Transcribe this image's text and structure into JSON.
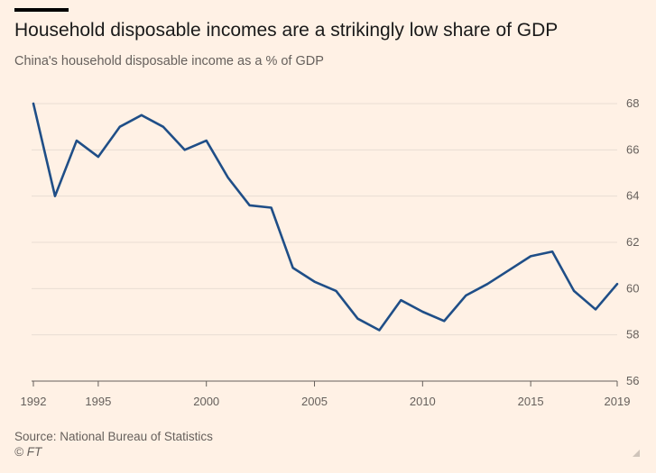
{
  "header": {
    "title": "Household disposable incomes are a strikingly low share of GDP",
    "subtitle": "China's household disposable income as a % of GDP"
  },
  "footer": {
    "source": "Source: National Bureau of Statistics",
    "credit": "© FT"
  },
  "colors": {
    "line": "#1f4e87",
    "grid": "#e8ddd3",
    "axis": "#66605c",
    "background": "#fff1e5"
  },
  "chart_data": {
    "type": "line",
    "title": "",
    "xlabel": "",
    "ylabel": "",
    "xlim": [
      1992,
      2019
    ],
    "ylim": [
      56,
      68
    ],
    "x_ticks": [
      "1992",
      "1995",
      "2000",
      "2005",
      "2010",
      "2015",
      "2019"
    ],
    "y_ticks": [
      "68",
      "66",
      "64",
      "62",
      "60",
      "58",
      "56"
    ],
    "y_axis_side": "right",
    "grid": true,
    "legend": "none",
    "series": [
      {
        "x": [
          1992,
          1993,
          1994,
          1995,
          1996,
          1997,
          1998,
          1999,
          2000,
          2001,
          2002,
          2003,
          2004,
          2005,
          2006,
          2007,
          2008,
          2009,
          2010,
          2011,
          2012,
          2013,
          2014,
          2015,
          2016,
          2017,
          2018,
          2019
        ],
        "values": [
          68.0,
          64.0,
          66.4,
          65.7,
          67.0,
          67.5,
          67.0,
          66.0,
          66.4,
          64.8,
          63.6,
          63.5,
          60.9,
          60.3,
          59.9,
          58.7,
          58.2,
          59.5,
          59.0,
          58.6,
          59.7,
          60.2,
          60.8,
          61.4,
          61.6,
          59.9,
          59.1,
          60.2
        ]
      }
    ]
  }
}
